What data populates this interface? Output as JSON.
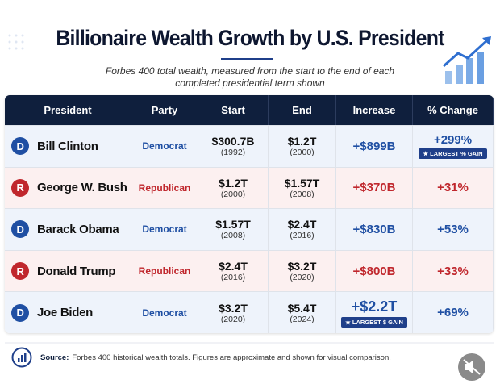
{
  "header": {
    "title": "Billionaire Wealth Growth by U.S. President",
    "subtitle": "Forbes 400 total wealth, measured from the start to the end of each completed presidential term shown"
  },
  "table": {
    "columns": [
      "President",
      "Party",
      "Start",
      "End",
      "Increase",
      "% Change"
    ],
    "rows": [
      {
        "badge": "D",
        "president": "Bill Clinton",
        "party": "Democrat",
        "start": "$300.7B",
        "start_year": "(1992)",
        "end": "$1.2T",
        "end_year": "(2000)",
        "increase": "+$899B",
        "change": "+299%",
        "change_note": "★ LARGEST % GAIN"
      },
      {
        "badge": "R",
        "president": "George W. Bush",
        "party": "Republican",
        "start": "$1.2T",
        "start_year": "(2000)",
        "end": "$1.57T",
        "end_year": "(2008)",
        "increase": "+$370B",
        "change": "+31%"
      },
      {
        "badge": "D",
        "president": "Barack Obama",
        "party": "Democrat",
        "start": "$1.57T",
        "start_year": "(2008)",
        "end": "$2.4T",
        "end_year": "(2016)",
        "increase": "+$830B",
        "change": "+53%"
      },
      {
        "badge": "R",
        "president": "Donald Trump",
        "party": "Republican",
        "start": "$2.4T",
        "start_year": "(2016)",
        "end": "$3.2T",
        "end_year": "(2020)",
        "increase": "+$800B",
        "change": "+33%"
      },
      {
        "badge": "D",
        "president": "Joe Biden",
        "party": "Democrat",
        "start": "$3.2T",
        "start_year": "(2020)",
        "end": "$5.4T",
        "end_year": "(2024)",
        "increase": "+$2.2T",
        "increase_note": "★ LARGEST $ GAIN",
        "change": "+69%"
      }
    ]
  },
  "footer": {
    "source_label": "Source:",
    "source_text": "Forbes 400 historical wealth totals. Figures are approximate and shown for visual comparison."
  }
}
